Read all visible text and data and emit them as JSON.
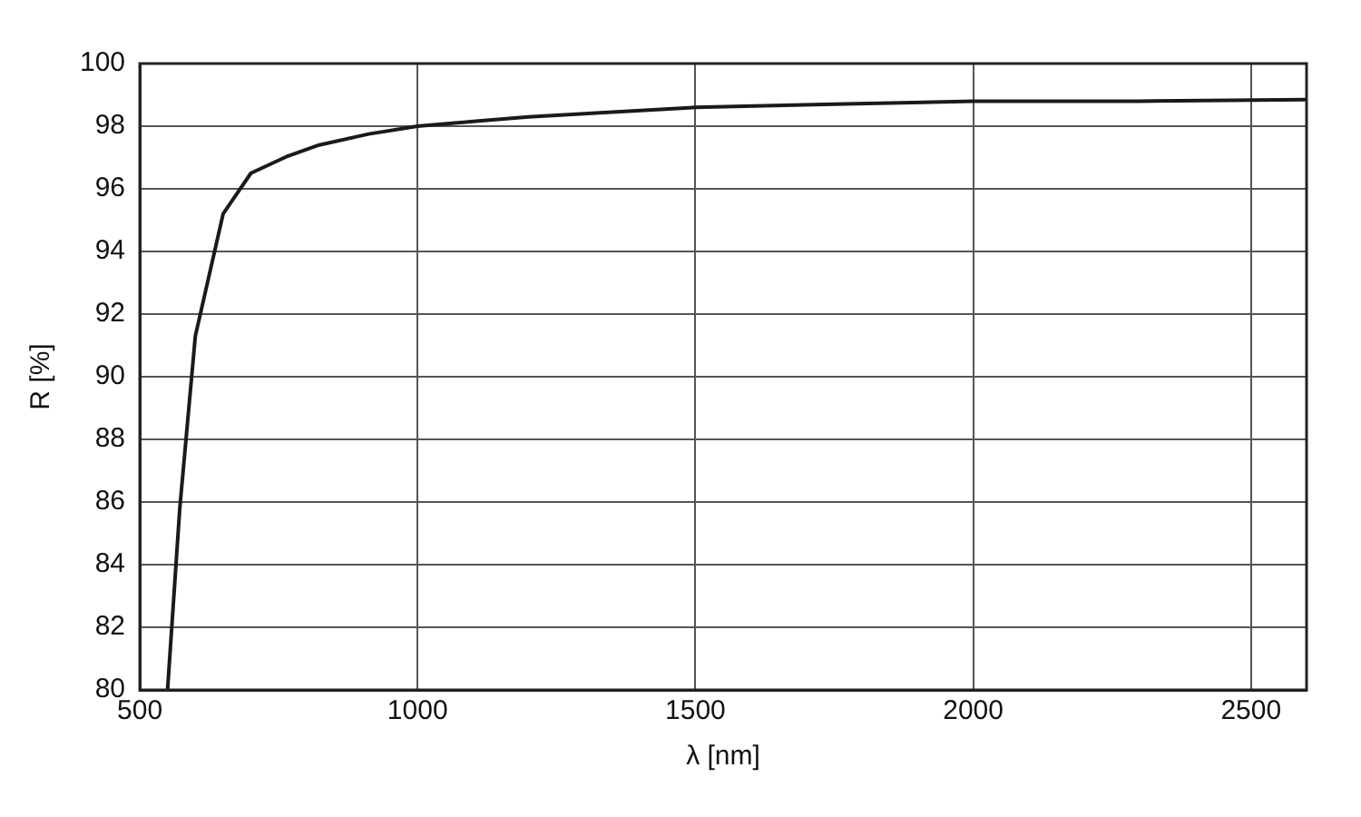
{
  "chart_data": {
    "type": "line",
    "xlabel": "λ [nm]",
    "ylabel": "R [%]",
    "x": [
      550,
      572,
      600,
      650,
      700,
      767,
      823,
      912,
      1000,
      1100,
      1200,
      1350,
      1500,
      1750,
      2000,
      2300,
      2600
    ],
    "series": [
      {
        "color": "#1a1a1a",
        "values": [
          80,
          85.8,
          91.3,
          95.2,
          96.5,
          97.05,
          97.4,
          97.75,
          98,
          98.15,
          98.3,
          98.45,
          98.6,
          98.7,
          98.8,
          98.8,
          98.85
        ]
      }
    ],
    "xlim": [
      500,
      2600
    ],
    "xticks": [
      500,
      1000,
      1500,
      2000,
      2500
    ],
    "ylim": [
      80,
      100
    ],
    "yticks": [
      80,
      82,
      84,
      86,
      88,
      90,
      92,
      94,
      96,
      98,
      100
    ],
    "grid": true,
    "legend": false,
    "marker": "none",
    "line_style": "solid"
  }
}
